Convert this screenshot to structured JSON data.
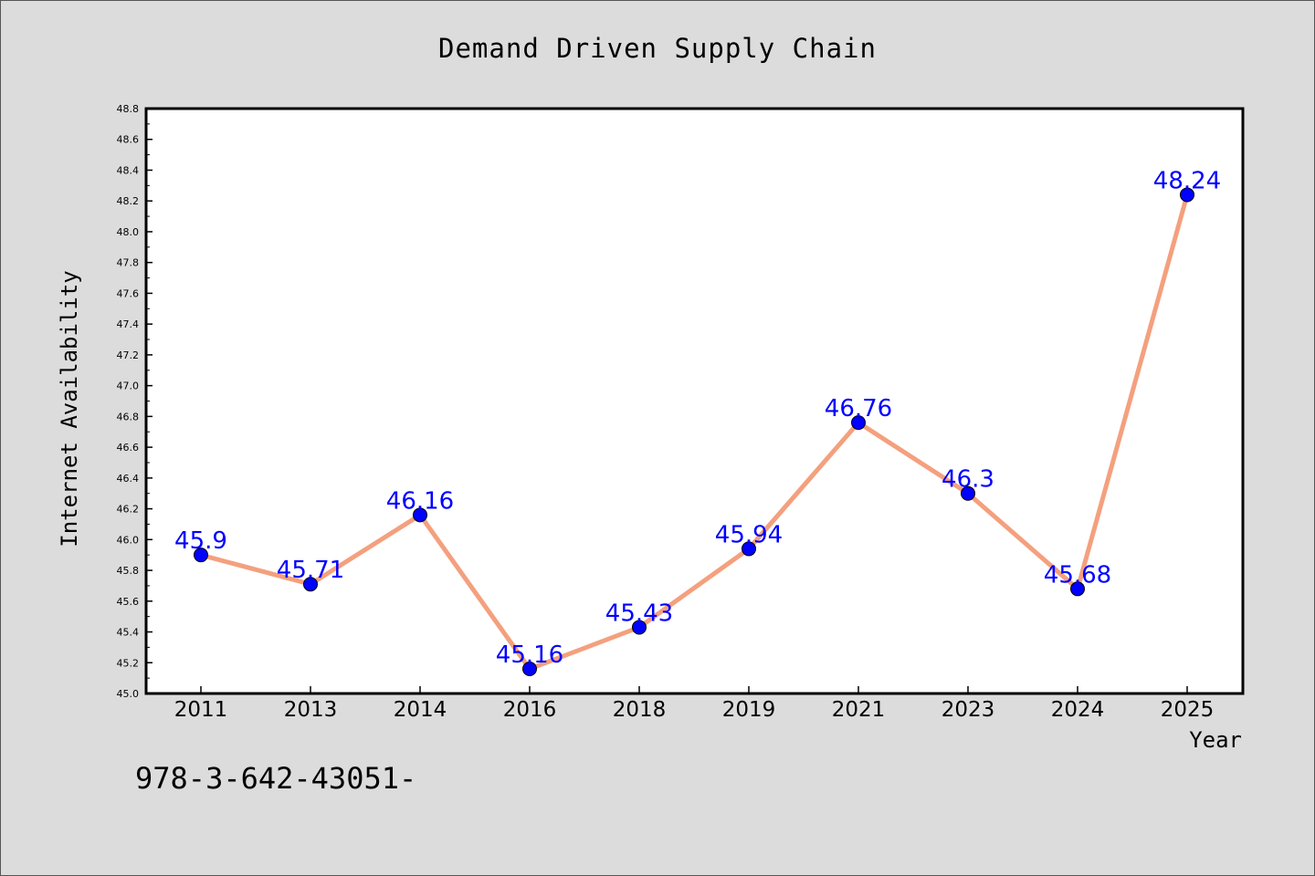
{
  "chart_data": {
    "type": "line",
    "title": "Demand Driven Supply Chain",
    "xlabel": "Year",
    "ylabel": "Internet Availability",
    "categories": [
      "2011",
      "2013",
      "2014",
      "2016",
      "2018",
      "2019",
      "2021",
      "2023",
      "2024",
      "2025"
    ],
    "series": [
      {
        "values": [
          45.9,
          45.71,
          46.16,
          45.16,
          45.43,
          45.94,
          46.76,
          46.3,
          45.68,
          48.24
        ],
        "labels": [
          "45.9",
          "45.71",
          "46.16",
          "45.16",
          "45.43",
          "45.94",
          "46.76",
          "46.3",
          "45.68",
          "48.24"
        ]
      }
    ],
    "ylim": [
      45.0,
      48.8
    ],
    "yticks": [
      "45.0",
      "45.2",
      "45.4",
      "45.6",
      "45.8",
      "46.0",
      "46.2",
      "46.4",
      "46.6",
      "46.8",
      "47.0",
      "47.2",
      "47.4",
      "47.6",
      "47.8",
      "48.0",
      "48.2",
      "48.4",
      "48.6",
      "48.8"
    ],
    "grid": false,
    "legend": "none",
    "colors": {
      "line": "#f4a07e",
      "marker": "#0000ff",
      "label": "#0000ff",
      "background": "#dcdcdc",
      "plot_background": "#ffffff"
    }
  },
  "footer_note": "978-3-642-43051-"
}
